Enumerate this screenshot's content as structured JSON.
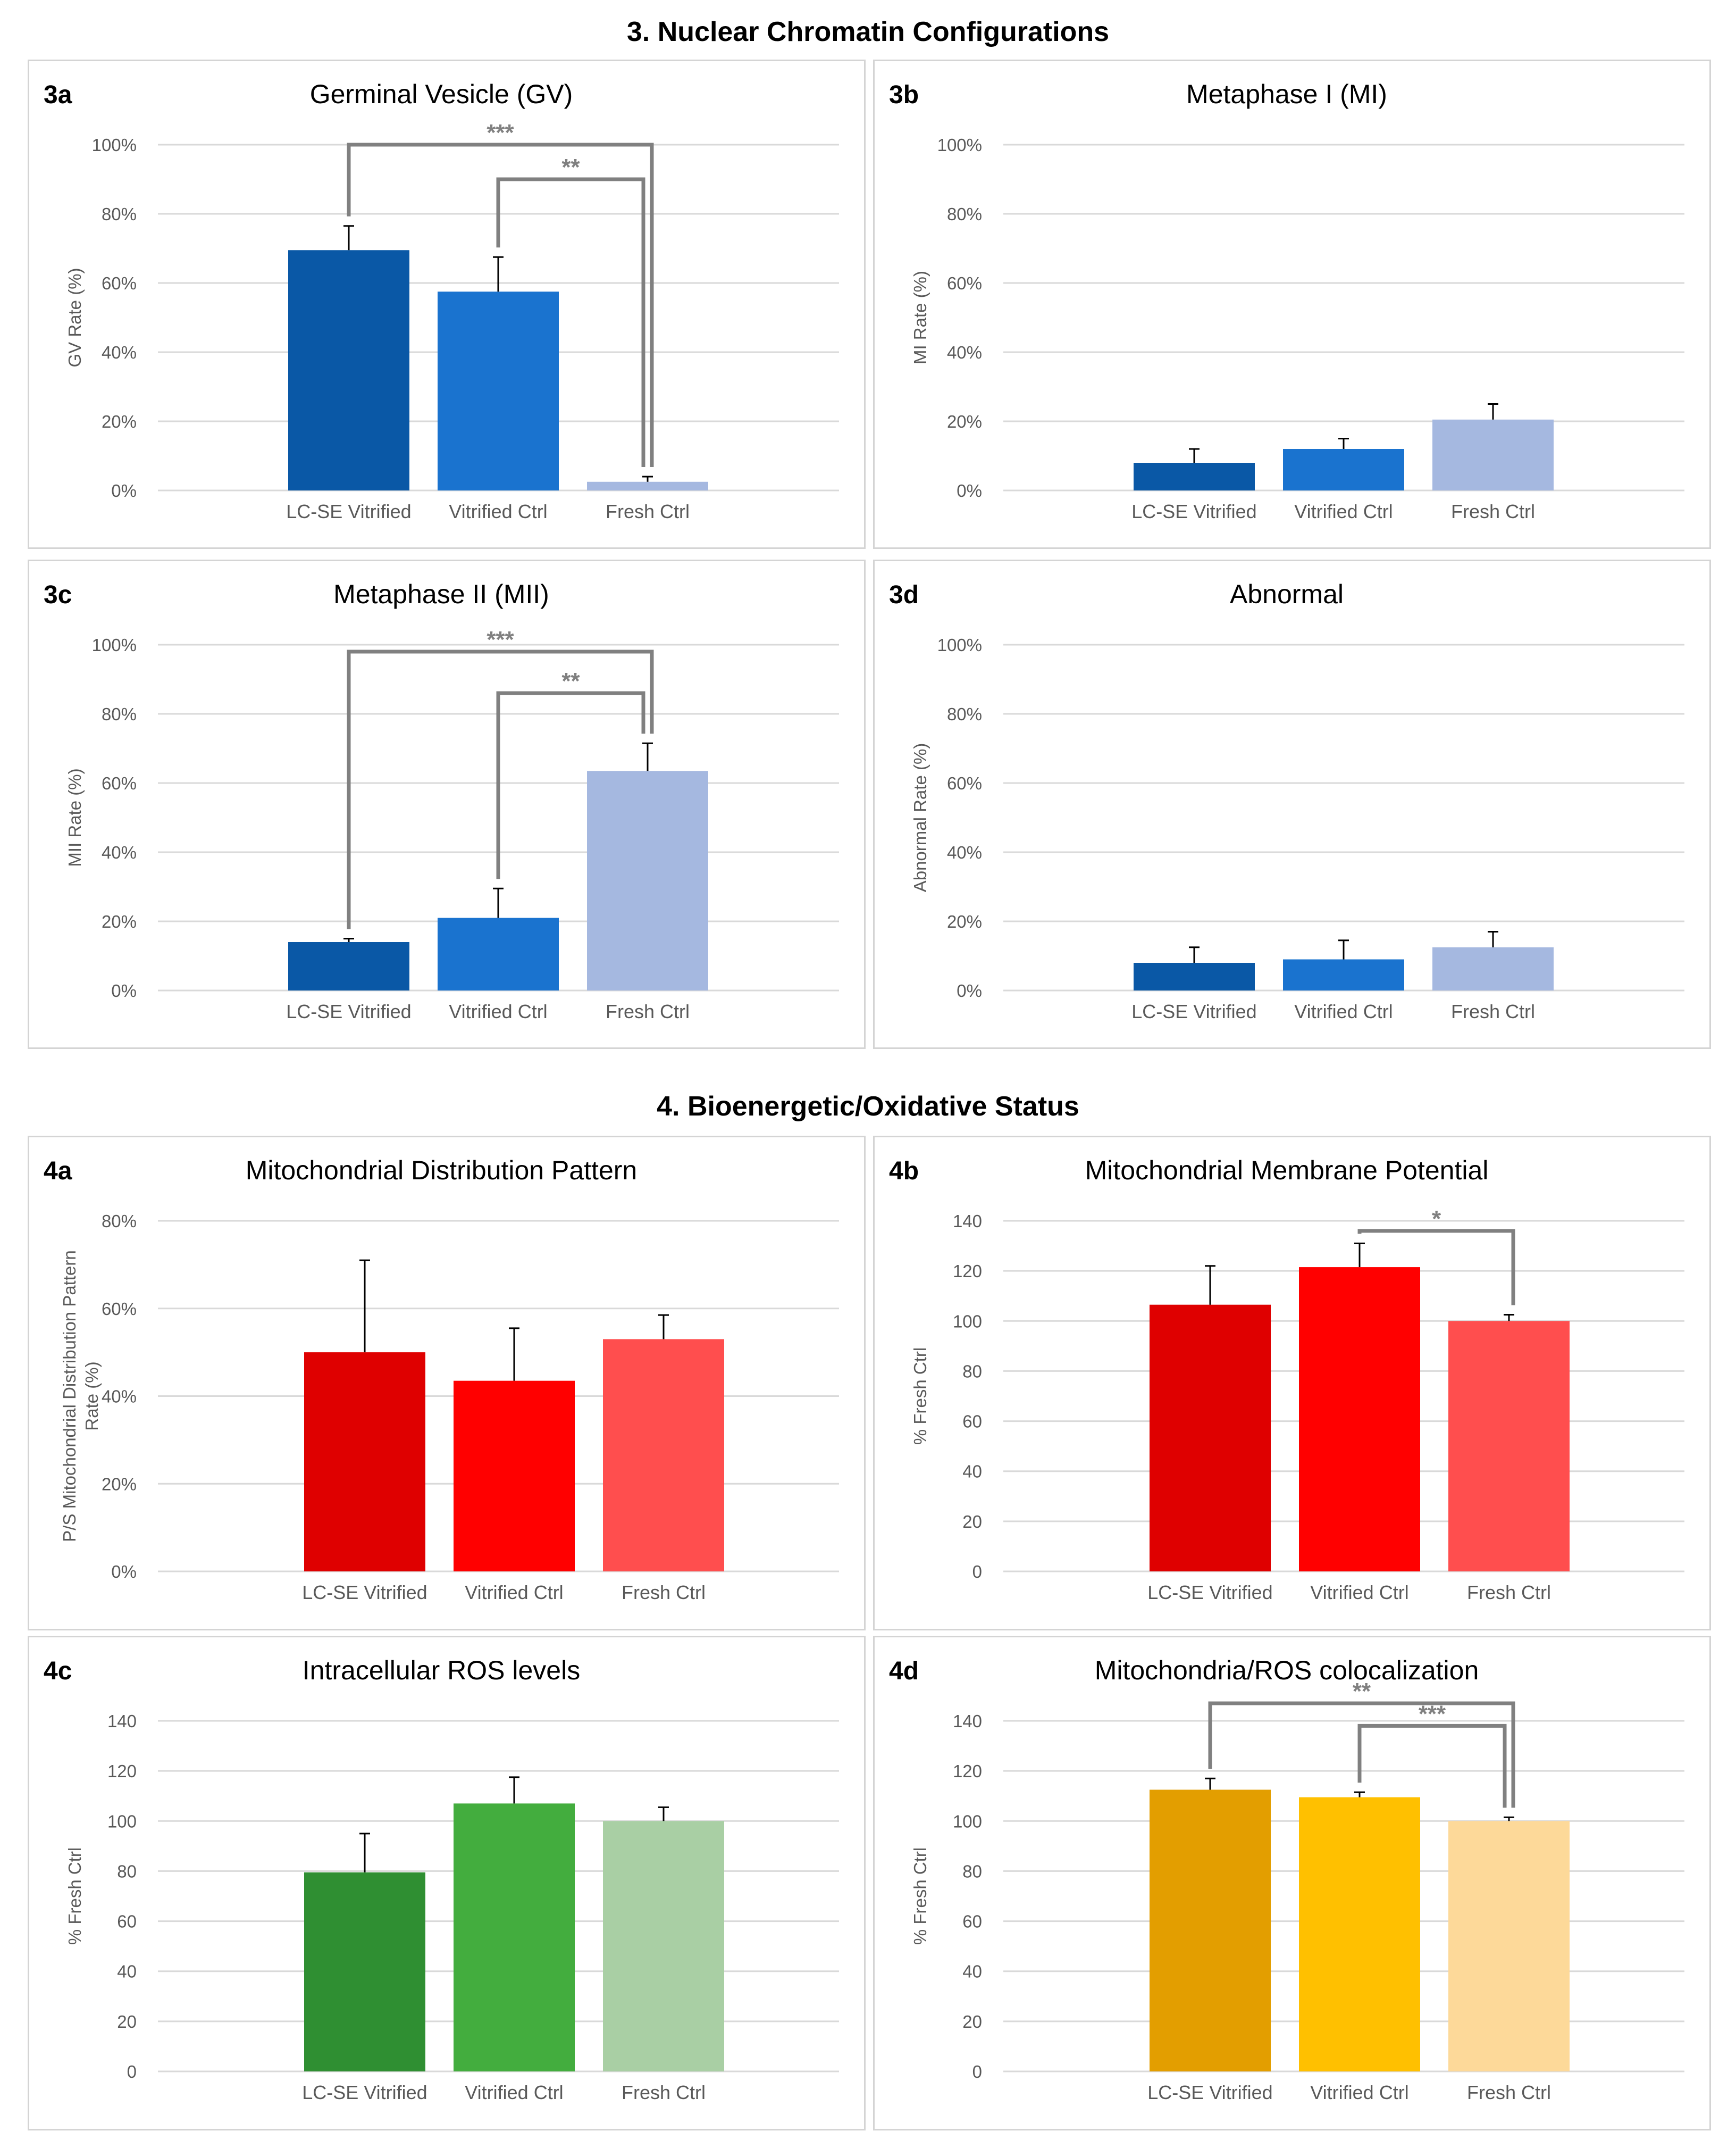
{
  "sections": [
    {
      "title": "3. Nuclear Chromatin Configurations"
    },
    {
      "title": "4. Bioenergetic/Oxidative Status"
    }
  ],
  "chart_data": [
    {
      "id": "3a",
      "type": "bar",
      "title": "Germinal Vesicle (GV)",
      "ylabel": "GV Rate (%)",
      "categories": [
        "LC-SE Vitrified",
        "Vitrified Ctrl",
        "Fresh Ctrl"
      ],
      "values": [
        69.5,
        57.5,
        2.5
      ],
      "errors": [
        7,
        10,
        1.5
      ],
      "ylim": [
        0,
        100
      ],
      "yticks": [
        0,
        20,
        40,
        60,
        80,
        100
      ],
      "ytick_labels": [
        "0%",
        "20%",
        "40%",
        "60%",
        "80%",
        "100%"
      ],
      "colors": [
        "#0a58a6",
        "#1a73cf",
        "#a5b8e0"
      ],
      "significance": [
        {
          "from": 0,
          "to": 2,
          "label": "***",
          "level": 100
        },
        {
          "from": 1,
          "to": 2,
          "label": "**",
          "level": 90
        }
      ]
    },
    {
      "id": "3b",
      "type": "bar",
      "title": "Metaphase I (MI)",
      "ylabel": "MI Rate (%)",
      "categories": [
        "LC-SE Vitrified",
        "Vitrified Ctrl",
        "Fresh Ctrl"
      ],
      "values": [
        8,
        12,
        20.5
      ],
      "errors": [
        4,
        3,
        4.5
      ],
      "ylim": [
        0,
        100
      ],
      "yticks": [
        0,
        20,
        40,
        60,
        80,
        100
      ],
      "ytick_labels": [
        "0%",
        "20%",
        "40%",
        "60%",
        "80%",
        "100%"
      ],
      "colors": [
        "#0a58a6",
        "#1a73cf",
        "#a5b8e0"
      ],
      "significance": []
    },
    {
      "id": "3c",
      "type": "bar",
      "title": "Metaphase II (MII)",
      "ylabel": "MII Rate (%)",
      "categories": [
        "LC-SE Vitrified",
        "Vitrified Ctrl",
        "Fresh Ctrl"
      ],
      "values": [
        14,
        21,
        63.5
      ],
      "errors": [
        1,
        8.5,
        8
      ],
      "ylim": [
        0,
        100
      ],
      "yticks": [
        0,
        20,
        40,
        60,
        80,
        100
      ],
      "ytick_labels": [
        "0%",
        "20%",
        "40%",
        "60%",
        "80%",
        "100%"
      ],
      "colors": [
        "#0a58a6",
        "#1a73cf",
        "#a5b8e0"
      ],
      "significance": [
        {
          "from": 0,
          "to": 2,
          "label": "***",
          "level": 98
        },
        {
          "from": 1,
          "to": 2,
          "label": "**",
          "level": 86
        }
      ]
    },
    {
      "id": "3d",
      "type": "bar",
      "title": "Abnormal",
      "ylabel": "Abnormal Rate (%)",
      "categories": [
        "LC-SE Vitrified",
        "Vitrified Ctrl",
        "Fresh Ctrl"
      ],
      "values": [
        8,
        9,
        12.5
      ],
      "errors": [
        4.5,
        5.5,
        4.5
      ],
      "ylim": [
        0,
        100
      ],
      "yticks": [
        0,
        20,
        40,
        60,
        80,
        100
      ],
      "ytick_labels": [
        "0%",
        "20%",
        "40%",
        "60%",
        "80%",
        "100%"
      ],
      "colors": [
        "#0a58a6",
        "#1a73cf",
        "#a5b8e0"
      ],
      "significance": []
    },
    {
      "id": "4a",
      "type": "bar",
      "title": "Mitochondrial Distribution Pattern",
      "ylabel": "P/S Mitochondrial Distribution Pattern Rate (%)",
      "ylabel_lines": [
        "P/S Mitochondrial Distribution Pattern",
        "Rate (%)"
      ],
      "categories": [
        "LC-SE Vitrified",
        "Vitrified Ctrl",
        "Fresh Ctrl"
      ],
      "values": [
        50,
        43.5,
        53
      ],
      "errors": [
        21,
        12,
        5.5
      ],
      "ylim": [
        0,
        80
      ],
      "yticks": [
        0,
        20,
        40,
        60,
        80
      ],
      "ytick_labels": [
        "0%",
        "20%",
        "40%",
        "60%",
        "80%"
      ],
      "colors": [
        "#df0000",
        "#ff0000",
        "#ff4e4e"
      ],
      "significance": []
    },
    {
      "id": "4b",
      "type": "bar",
      "title": "Mitochondrial Membrane Potential",
      "ylabel": "% Fresh Ctrl",
      "categories": [
        "LC-SE Vitrified",
        "Vitrified Ctrl",
        "Fresh Ctrl"
      ],
      "values": [
        106.5,
        121.5,
        100
      ],
      "errors": [
        15.5,
        9.5,
        2.5
      ],
      "ylim": [
        0,
        140
      ],
      "yticks": [
        0,
        20,
        40,
        60,
        80,
        100,
        120,
        140
      ],
      "ytick_labels": [
        "0",
        "20",
        "40",
        "60",
        "80",
        "100",
        "120",
        "140"
      ],
      "colors": [
        "#df0000",
        "#ff0000",
        "#ff4e4e"
      ],
      "significance": [
        {
          "from": 1,
          "to": 2,
          "label": "*",
          "level": 136
        }
      ]
    },
    {
      "id": "4c",
      "type": "bar",
      "title": "Intracellular ROS levels",
      "ylabel": "% Fresh Ctrl",
      "categories": [
        "LC-SE Vitrified",
        "Vitrified Ctrl",
        "Fresh Ctrl"
      ],
      "values": [
        79.5,
        107,
        100
      ],
      "errors": [
        15.5,
        10.5,
        5.5
      ],
      "ylim": [
        0,
        140
      ],
      "yticks": [
        0,
        20,
        40,
        60,
        80,
        100,
        120,
        140
      ],
      "ytick_labels": [
        "0",
        "20",
        "40",
        "60",
        "80",
        "100",
        "120",
        "140"
      ],
      "colors": [
        "#2f8f32",
        "#43ad3e",
        "#a9cfa4"
      ],
      "significance": []
    },
    {
      "id": "4d",
      "type": "bar",
      "title": "Mitochondria/ROS colocalization",
      "ylabel": "% Fresh Ctrl",
      "categories": [
        "LC-SE Vitrified",
        "Vitrified Ctrl",
        "Fresh Ctrl"
      ],
      "values": [
        112.5,
        109.5,
        100
      ],
      "errors": [
        4.5,
        2,
        1.5
      ],
      "ylim": [
        0,
        140
      ],
      "yticks": [
        0,
        20,
        40,
        60,
        80,
        100,
        120,
        140
      ],
      "ytick_labels": [
        "0",
        "20",
        "40",
        "60",
        "80",
        "100",
        "120",
        "140"
      ],
      "colors": [
        "#e39e00",
        "#ffc000",
        "#fdd999"
      ],
      "significance": [
        {
          "from": 0,
          "to": 2,
          "label": "**",
          "level": 147
        },
        {
          "from": 1,
          "to": 2,
          "label": "***",
          "level": 138
        }
      ]
    }
  ]
}
